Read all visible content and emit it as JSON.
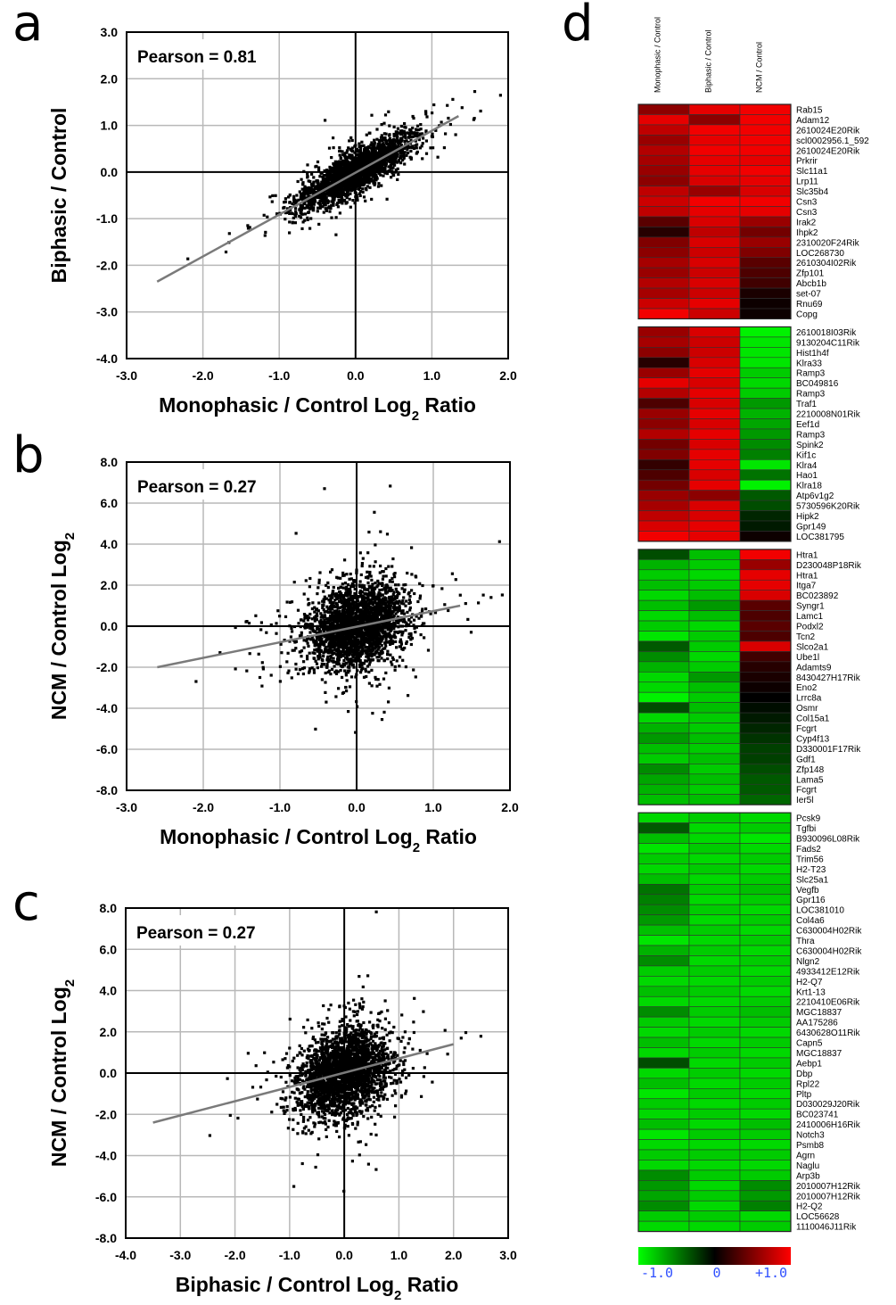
{
  "panel_labels": [
    "a",
    "b",
    "c",
    "d"
  ],
  "chart_data": [
    {
      "type": "scatter",
      "panel": "a",
      "annotation": "Pearson = 0.81",
      "xlabel": "Monophasic / Control Log2 Ratio",
      "xlabel_main": "Monophasic / Control Log",
      "xlabel_sub": "2",
      "xlabel_after": " Ratio",
      "ylabel": "Biphasic / Control",
      "ylabel_main": "Biphasic / Control",
      "ylabel_sub": "",
      "xlim": [
        -3.0,
        2.0
      ],
      "ylim": [
        -4.0,
        3.0
      ],
      "xticks": [
        "-3.0",
        "-2.0",
        "-1.0",
        "0.0",
        "1.0",
        "2.0"
      ],
      "yticks": [
        "3.0",
        "2.0",
        "1.0",
        "0.0",
        "-1.0",
        "-2.0",
        "-3.0",
        "-4.0"
      ],
      "grid": true,
      "pearson": 0.81,
      "trend_line": {
        "x": [
          -2.6,
          1.35
        ],
        "y": [
          -2.35,
          1.2
        ]
      },
      "cloud": {
        "x_center": 0.0,
        "x_spread": 0.35,
        "slope": 0.9,
        "y_noise": 0.22,
        "n": 2600
      }
    },
    {
      "type": "scatter",
      "panel": "b",
      "annotation": "Pearson = 0.27",
      "xlabel": "Monophasic / Control Log2 Ratio",
      "xlabel_main": "Monophasic / Control Log",
      "xlabel_sub": "2",
      "xlabel_after": " Ratio",
      "ylabel": "NCM / Control Log2",
      "ylabel_main": "NCM / Control Log",
      "ylabel_sub": "2",
      "xlim": [
        -3.0,
        2.0
      ],
      "ylim": [
        -8.0,
        8.0
      ],
      "xticks": [
        "-3.0",
        "-2.0",
        "-1.0",
        "0.0",
        "1.0",
        "2.0"
      ],
      "yticks": [
        "8.0",
        "6.0",
        "4.0",
        "2.0",
        "0.0",
        "-2.0",
        "-4.0",
        "-6.0",
        "-8.0"
      ],
      "grid": true,
      "pearson": 0.27,
      "trend_line": {
        "x": [
          -2.6,
          1.35
        ],
        "y": [
          -2.0,
          1.0
        ]
      },
      "cloud": {
        "x_center": 0.0,
        "x_spread": 0.33,
        "slope": 0.76,
        "y_noise": 1.05,
        "n": 2600
      }
    },
    {
      "type": "scatter",
      "panel": "c",
      "annotation": "Pearson = 0.27",
      "xlabel": "Biphasic / Control Log2 Ratio",
      "xlabel_main": "Biphasic / Control Log",
      "xlabel_sub": "2",
      "xlabel_after": " Ratio",
      "ylabel": "NCM / Control Log2",
      "ylabel_main": "NCM / Control Log",
      "ylabel_sub": "2",
      "xlim": [
        -4.0,
        3.0
      ],
      "ylim": [
        -8.0,
        8.0
      ],
      "xticks": [
        "-4.0",
        "-3.0",
        "-2.0",
        "-1.0",
        "0.0",
        "1.0",
        "2.0",
        "3.0"
      ],
      "yticks": [
        "8.0",
        "6.0",
        "4.0",
        "2.0",
        "0.0",
        "-2.0",
        "-4.0",
        "-6.0",
        "-8.0"
      ],
      "grid": true,
      "pearson": 0.27,
      "trend_line": {
        "x": [
          -3.5,
          2.0
        ],
        "y": [
          -2.4,
          1.4
        ]
      },
      "cloud": {
        "x_center": 0.0,
        "x_spread": 0.42,
        "slope": 0.69,
        "y_noise": 1.05,
        "n": 2600
      }
    },
    {
      "type": "heatmap",
      "panel": "d",
      "columns": [
        "Monophasic / Control",
        "Biphasic / Control",
        "NCM / Control"
      ],
      "colorbar": {
        "min_label": "-1.0",
        "mid_label": "0",
        "max_label": "+1.0",
        "low_color": "#00ff00",
        "mid_color": "#000000",
        "high_color": "#ff0000"
      },
      "blocks": [
        {
          "genes": [
            "Rab15",
            "Adam12",
            "2610024E20Rik",
            "scl0002956.1_592",
            "2610024E20Rik",
            "Prkrir",
            "Slc11a1",
            "Lrp11",
            "Slc35b4",
            "Csn3",
            "Csn3",
            "Irak2",
            "Ihpk2",
            "2310020F24Rik",
            "LOC268730",
            "2610304I02Rik",
            "Zfp101",
            "Abcb1b",
            "set-07",
            "Rnu69",
            "Copg"
          ],
          "values": [
            [
              0.55,
              0.9,
              0.95
            ],
            [
              0.9,
              0.55,
              0.95
            ],
            [
              0.75,
              0.95,
              0.95
            ],
            [
              0.6,
              0.9,
              0.95
            ],
            [
              0.7,
              0.95,
              0.95
            ],
            [
              0.65,
              0.9,
              0.9
            ],
            [
              0.6,
              0.9,
              0.95
            ],
            [
              0.55,
              0.85,
              0.9
            ],
            [
              0.75,
              0.6,
              0.85
            ],
            [
              0.8,
              0.95,
              0.95
            ],
            [
              0.75,
              0.9,
              0.9
            ],
            [
              0.35,
              0.85,
              0.6
            ],
            [
              0.15,
              0.75,
              0.45
            ],
            [
              0.5,
              0.85,
              0.6
            ],
            [
              0.55,
              0.8,
              0.5
            ],
            [
              0.65,
              0.85,
              0.35
            ],
            [
              0.6,
              0.8,
              0.3
            ],
            [
              0.7,
              0.85,
              0.25
            ],
            [
              0.65,
              0.8,
              0.1
            ],
            [
              0.8,
              0.9,
              0.05
            ],
            [
              0.95,
              0.8,
              0.05
            ]
          ]
        },
        {
          "genes": [
            "2610018I03Rik",
            "9130204C11Rik",
            "Hist1h4f",
            "Klra33",
            "Ramp3",
            "BC049816",
            "Ramp3",
            "Traf1",
            "2210008N01Rik",
            "Eef1d",
            "Ramp3",
            "Spink2",
            "Kif1c",
            "Klra4",
            "Hao1",
            "Klra18",
            "Atp6v1g2",
            "5730596K20Rik",
            "Hipk2",
            "Gpr149",
            "LOC381795"
          ],
          "values": [
            [
              0.6,
              0.85,
              -0.95
            ],
            [
              0.65,
              0.8,
              -0.9
            ],
            [
              0.55,
              0.8,
              -0.9
            ],
            [
              0.15,
              0.85,
              -0.9
            ],
            [
              0.6,
              0.9,
              -0.8
            ],
            [
              0.9,
              0.85,
              -0.85
            ],
            [
              0.7,
              0.9,
              -0.8
            ],
            [
              0.3,
              0.85,
              -0.6
            ],
            [
              0.6,
              0.9,
              -0.7
            ],
            [
              0.55,
              0.85,
              -0.65
            ],
            [
              0.7,
              0.9,
              -0.6
            ],
            [
              0.45,
              0.85,
              -0.55
            ],
            [
              0.5,
              0.9,
              -0.5
            ],
            [
              0.2,
              0.9,
              -0.9
            ],
            [
              0.3,
              0.85,
              -0.45
            ],
            [
              0.45,
              0.9,
              -0.95
            ],
            [
              0.6,
              0.55,
              -0.35
            ],
            [
              0.65,
              0.85,
              -0.3
            ],
            [
              0.75,
              0.85,
              -0.15
            ],
            [
              0.85,
              0.9,
              -0.1
            ],
            [
              0.95,
              0.9,
              0.05
            ]
          ]
        },
        {
          "genes": [
            "Htra1",
            "D230048P18Rik",
            "Htra1",
            "Itga7",
            "BC023892",
            "Syngr1",
            "Lamc1",
            "Podxl2",
            "Tcn2",
            "Slco2a1",
            "Ube1l",
            "Adamts9",
            "8430427H17Rik",
            "Eno2",
            "Lrrc8a",
            "Osmr",
            "Col15a1",
            "Fcgrt",
            "Cyp4f13",
            "D330001F17Rik",
            "Gdf1",
            "Zfp148",
            "Lama5",
            "Fcgrt",
            "Ier5l"
          ],
          "values": [
            [
              -0.3,
              -0.75,
              0.95
            ],
            [
              -0.7,
              -0.8,
              0.6
            ],
            [
              -0.8,
              -0.85,
              0.9
            ],
            [
              -0.75,
              -0.8,
              0.9
            ],
            [
              -0.85,
              -0.75,
              0.85
            ],
            [
              -0.75,
              -0.6,
              0.35
            ],
            [
              -0.85,
              -0.75,
              0.3
            ],
            [
              -0.8,
              -0.85,
              0.35
            ],
            [
              -0.9,
              -0.8,
              0.3
            ],
            [
              -0.35,
              -0.8,
              0.85
            ],
            [
              -0.55,
              -0.85,
              0.25
            ],
            [
              -0.7,
              -0.8,
              0.15
            ],
            [
              -0.85,
              -0.6,
              0.1
            ],
            [
              -0.85,
              -0.75,
              0.05
            ],
            [
              -0.95,
              -0.8,
              0.0
            ],
            [
              -0.3,
              -0.75,
              -0.05
            ],
            [
              -0.85,
              -0.8,
              -0.1
            ],
            [
              -0.7,
              -0.8,
              -0.15
            ],
            [
              -0.6,
              -0.75,
              -0.2
            ],
            [
              -0.75,
              -0.8,
              -0.25
            ],
            [
              -0.8,
              -0.75,
              -0.25
            ],
            [
              -0.55,
              -0.8,
              -0.3
            ],
            [
              -0.65,
              -0.75,
              -0.35
            ],
            [
              -0.7,
              -0.8,
              -0.35
            ],
            [
              -0.75,
              -0.75,
              -0.4
            ]
          ]
        },
        {
          "genes": [
            "Pcsk9",
            "Tgfbi",
            "B930096L08Rik",
            "Fads2",
            "Trim56",
            "H2-T23",
            "Slc25a1",
            "Vegfb",
            "Gpr116",
            "LOC381010",
            "Col4a6",
            "C630004H02Rik",
            "Thra",
            "C630004H02Rik",
            "Nlgn2",
            "4933412E12Rik",
            "H2-Q7",
            "Krt1-13",
            "2210410E06Rik",
            "MGC18837",
            "AA175286",
            "6430628O11Rik",
            "Capn5",
            "MGC18837",
            "Aebp1",
            "Dbp",
            "Rpl22",
            "Pltp",
            "D030029J20Rik",
            "BC023741",
            "2410006H16Rik",
            "Notch3",
            "Psmb8",
            "Agrn",
            "Naglu",
            "Arp3b",
            "2010007H12Rik",
            "2010007H12Rik",
            "H2-Q2",
            "LOC56628",
            "1110046J11Rik"
          ],
          "values": [
            [
              -0.85,
              -0.8,
              -0.85
            ],
            [
              -0.35,
              -0.85,
              -0.8
            ],
            [
              -0.75,
              -0.85,
              -0.9
            ],
            [
              -0.9,
              -0.8,
              -0.85
            ],
            [
              -0.8,
              -0.85,
              -0.8
            ],
            [
              -0.85,
              -0.8,
              -0.85
            ],
            [
              -0.75,
              -0.85,
              -0.8
            ],
            [
              -0.45,
              -0.8,
              -0.75
            ],
            [
              -0.5,
              -0.85,
              -0.8
            ],
            [
              -0.55,
              -0.8,
              -0.85
            ],
            [
              -0.6,
              -0.85,
              -0.8
            ],
            [
              -0.75,
              -0.8,
              -0.85
            ],
            [
              -0.9,
              -0.85,
              -0.8
            ],
            [
              -0.7,
              -0.8,
              -0.85
            ],
            [
              -0.55,
              -0.85,
              -0.8
            ],
            [
              -0.8,
              -0.8,
              -0.85
            ],
            [
              -0.85,
              -0.85,
              -0.8
            ],
            [
              -0.75,
              -0.8,
              -0.85
            ],
            [
              -0.85,
              -0.85,
              -0.8
            ],
            [
              -0.55,
              -0.8,
              -0.75
            ],
            [
              -0.8,
              -0.85,
              -0.8
            ],
            [
              -0.85,
              -0.8,
              -0.85
            ],
            [
              -0.75,
              -0.85,
              -0.8
            ],
            [
              -0.85,
              -0.8,
              -0.85
            ],
            [
              -0.3,
              -0.85,
              -0.8
            ],
            [
              -0.85,
              -0.8,
              -0.85
            ],
            [
              -0.75,
              -0.85,
              -0.8
            ],
            [
              -0.9,
              -0.8,
              -0.85
            ],
            [
              -0.8,
              -0.85,
              -0.8
            ],
            [
              -0.85,
              -0.8,
              -0.85
            ],
            [
              -0.75,
              -0.85,
              -0.75
            ],
            [
              -0.9,
              -0.8,
              -0.8
            ],
            [
              -0.85,
              -0.85,
              -0.85
            ],
            [
              -0.8,
              -0.8,
              -0.8
            ],
            [
              -0.85,
              -0.85,
              -0.85
            ],
            [
              -0.55,
              -0.8,
              -0.8
            ],
            [
              -0.6,
              -0.85,
              -0.55
            ],
            [
              -0.65,
              -0.8,
              -0.6
            ],
            [
              -0.55,
              -0.85,
              -0.5
            ],
            [
              -0.8,
              -0.8,
              -0.85
            ],
            [
              -0.85,
              -0.85,
              -0.8
            ]
          ]
        }
      ]
    }
  ]
}
